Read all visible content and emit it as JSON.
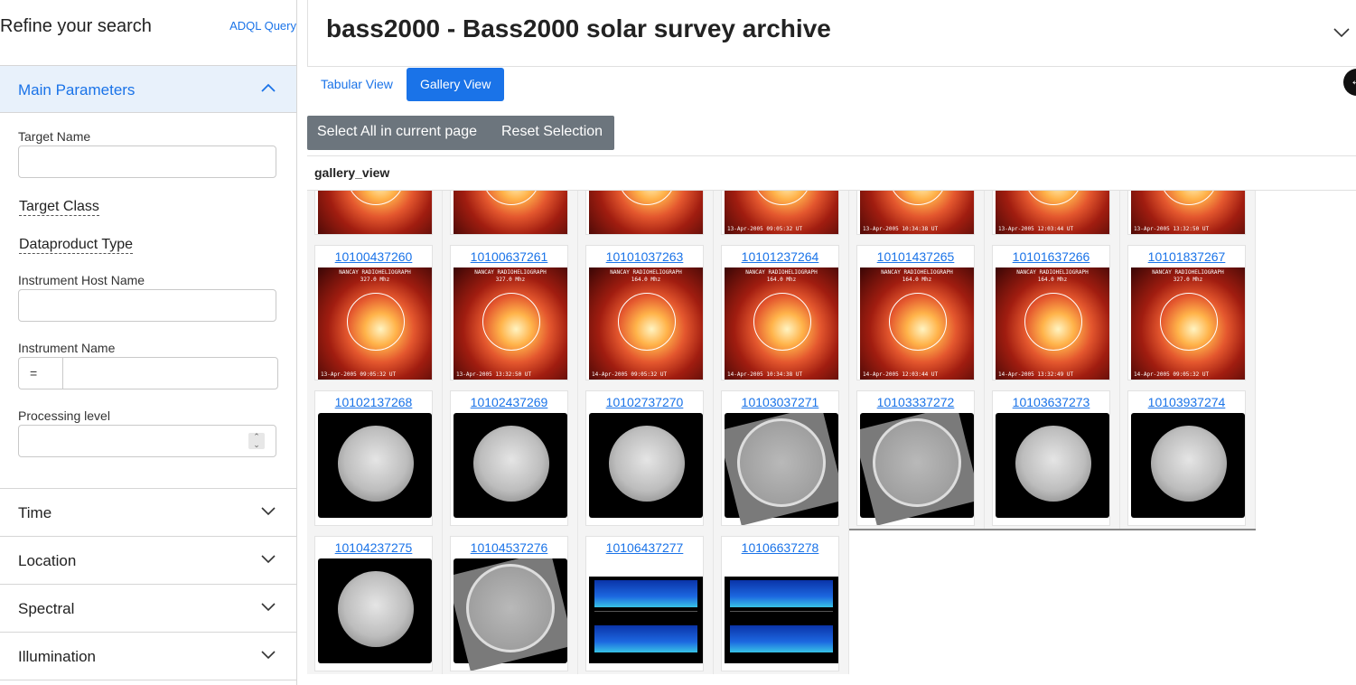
{
  "sidebar": {
    "title": "Refine your search",
    "adql_link": "ADQL Query",
    "main_params": {
      "label": "Main Parameters",
      "target_name_label": "Target Name",
      "target_class_label": "Target Class",
      "dataproduct_type_label": "Dataproduct Type",
      "instrument_host_label": "Instrument Host Name",
      "instrument_name_label": "Instrument Name",
      "instrument_name_operator": "=",
      "processing_level_label": "Processing level"
    },
    "sections": [
      "Time",
      "Location",
      "Spectral",
      "Illumination"
    ]
  },
  "header": {
    "title": "bass2000 - Bass2000 solar survey archive"
  },
  "tabs": {
    "tabular": "Tabular View",
    "gallery": "Gallery View"
  },
  "selection": {
    "select_all": "Select All in current page",
    "reset": "Reset Selection"
  },
  "gallery": {
    "title": "gallery_view",
    "top_row_captions": [
      "",
      "",
      "",
      "13-Apr-2005 09:05:32 UT",
      "13-Apr-2005 10:34:38 UT",
      "13-Apr-2005 12:03:44 UT",
      "13-Apr-2005 13:32:50 UT"
    ],
    "rows": [
      [
        {
          "id": "10100437260",
          "kind": "red",
          "l1": "NANCAY RADIOHELIOGRAPH",
          "l2": "327.0 Mhz",
          "l3": "13-Apr-2005 09:05:32 UT"
        },
        {
          "id": "10100637261",
          "kind": "red",
          "l1": "NANCAY RADIOHELIOGRAPH",
          "l2": "327.0 Mhz",
          "l3": "13-Apr-2005 13:32:50 UT"
        },
        {
          "id": "10101037263",
          "kind": "red",
          "l1": "NANCAY RADIOHELIOGRAPH",
          "l2": "164.0 Mhz",
          "l3": "14-Apr-2005 09:05:32 UT"
        },
        {
          "id": "10101237264",
          "kind": "red",
          "l1": "NANCAY RADIOHELIOGRAPH",
          "l2": "164.0 Mhz",
          "l3": "14-Apr-2005 10:34:38 UT"
        },
        {
          "id": "10101437265",
          "kind": "red",
          "l1": "NANCAY RADIOHELIOGRAPH",
          "l2": "164.0 Mhz",
          "l3": "14-Apr-2005 12:03:44 UT"
        },
        {
          "id": "10101637266",
          "kind": "red",
          "l1": "NANCAY RADIOHELIOGRAPH",
          "l2": "164.0 Mhz",
          "l3": "14-Apr-2005 13:32:49 UT"
        },
        {
          "id": "10101837267",
          "kind": "red",
          "l1": "NANCAY RADIOHELIOGRAPH",
          "l2": "327.0 Mhz",
          "l3": "14-Apr-2005 09:05:32 UT"
        }
      ],
      [
        {
          "id": "10102137268",
          "kind": "grey"
        },
        {
          "id": "10102437269",
          "kind": "grey"
        },
        {
          "id": "10102737270",
          "kind": "grey"
        },
        {
          "id": "10103037271",
          "kind": "tilt"
        },
        {
          "id": "10103337272",
          "kind": "tilt"
        },
        {
          "id": "10103637273",
          "kind": "grey"
        },
        {
          "id": "10103937274",
          "kind": "grey"
        }
      ],
      [
        {
          "id": "10104237275",
          "kind": "grey"
        },
        {
          "id": "10104537276",
          "kind": "tilt"
        },
        {
          "id": "10106437277",
          "kind": "spectro"
        },
        {
          "id": "10106637278",
          "kind": "spectro"
        }
      ]
    ]
  }
}
